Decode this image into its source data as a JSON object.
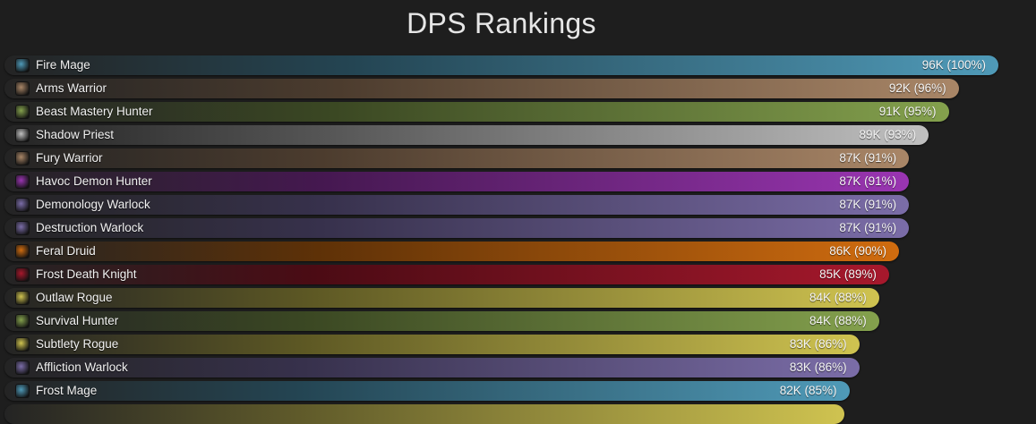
{
  "chart_data": {
    "type": "bar",
    "orientation": "horizontal",
    "title": "DPS Rankings",
    "bars": [
      {
        "name": "Fire Mage",
        "value_label": "96K (100%)",
        "value": 96,
        "percent": 100,
        "color": "#4f9ab8",
        "icon": "fire-icon"
      },
      {
        "name": "Arms Warrior",
        "value_label": "92K (96%)",
        "value": 92,
        "percent": 96,
        "color": "#a98667",
        "icon": "sword-icon"
      },
      {
        "name": "Beast Mastery Hunter",
        "value_label": "91K (95%)",
        "value": 91,
        "percent": 95,
        "color": "#84a14d",
        "icon": "beast-icon"
      },
      {
        "name": "Shadow Priest",
        "value_label": "89K (93%)",
        "value": 89,
        "percent": 93,
        "color": "#c0c0c0",
        "icon": "shadow-icon"
      },
      {
        "name": "Fury Warrior",
        "value_label": "87K (91%)",
        "value": 87,
        "percent": 91,
        "color": "#a98667",
        "icon": "fury-icon"
      },
      {
        "name": "Havoc Demon Hunter",
        "value_label": "87K (91%)",
        "value": 87,
        "percent": 91,
        "color": "#9a35b2",
        "icon": "demon-icon"
      },
      {
        "name": "Demonology Warlock",
        "value_label": "87K (91%)",
        "value": 87,
        "percent": 91,
        "color": "#7b6da8",
        "icon": "demonology-icon"
      },
      {
        "name": "Destruction Warlock",
        "value_label": "87K (91%)",
        "value": 87,
        "percent": 91,
        "color": "#7b6da8",
        "icon": "destruction-icon"
      },
      {
        "name": "Feral Druid",
        "value_label": "86K (90%)",
        "value": 86,
        "percent": 90,
        "color": "#d06c0f",
        "icon": "feral-icon"
      },
      {
        "name": "Frost Death Knight",
        "value_label": "85K (89%)",
        "value": 85,
        "percent": 89,
        "color": "#a7182c",
        "icon": "frost-dk-icon"
      },
      {
        "name": "Outlaw Rogue",
        "value_label": "84K (88%)",
        "value": 84,
        "percent": 88,
        "color": "#cfc350",
        "icon": "outlaw-icon"
      },
      {
        "name": "Survival Hunter",
        "value_label": "84K (88%)",
        "value": 84,
        "percent": 88,
        "color": "#84a14d",
        "icon": "survival-icon"
      },
      {
        "name": "Subtlety Rogue",
        "value_label": "83K (86%)",
        "value": 83,
        "percent": 86,
        "color": "#cfc350",
        "icon": "subtlety-icon"
      },
      {
        "name": "Affliction Warlock",
        "value_label": "83K (86%)",
        "value": 83,
        "percent": 86,
        "color": "#7b6da8",
        "icon": "affliction-icon"
      },
      {
        "name": "Frost Mage",
        "value_label": "82K (85%)",
        "value": 82,
        "percent": 85,
        "color": "#4f9ab8",
        "icon": "frost-mage-icon"
      }
    ]
  }
}
